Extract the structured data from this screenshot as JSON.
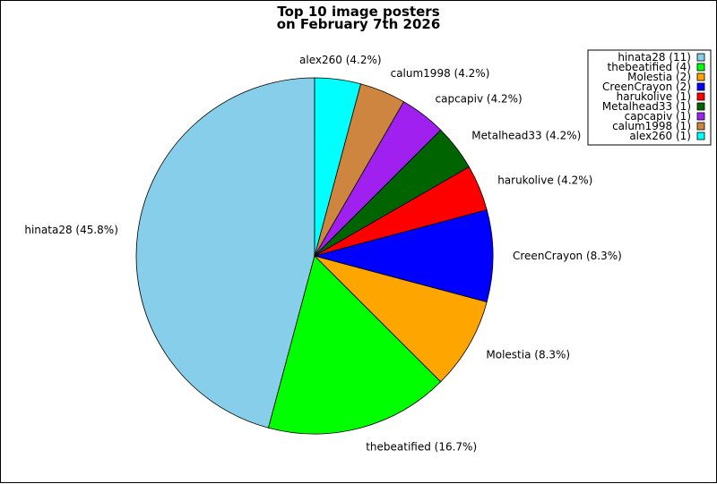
{
  "chart_data": {
    "type": "pie",
    "title_line1": "Top 10 image posters",
    "title_line2": "on February 7th 2026",
    "legend_position": "top-right",
    "slices": [
      {
        "name": "hinata28",
        "value": 11,
        "percent": "45.8%",
        "color": "#87CEEB",
        "label": "hinata28 (45.8%)",
        "legend": "hinata28 (11)"
      },
      {
        "name": "thebeatified",
        "value": 4,
        "percent": "16.7%",
        "color": "#00FF00",
        "label": "thebeatified (16.7%)",
        "legend": "thebeatified (4)"
      },
      {
        "name": "Molestia",
        "value": 2,
        "percent": "8.3%",
        "color": "#FFA500",
        "label": "Molestia (8.3%)",
        "legend": "Molestia (2)"
      },
      {
        "name": "CreenCrayon",
        "value": 2,
        "percent": "8.3%",
        "color": "#0000FF",
        "label": "CreenCrayon (8.3%)",
        "legend": "CreenCrayon (2)"
      },
      {
        "name": "harukolive",
        "value": 1,
        "percent": "4.2%",
        "color": "#FF0000",
        "label": "harukolive (4.2%)",
        "legend": "harukolive (1)"
      },
      {
        "name": "Metalhead33",
        "value": 1,
        "percent": "4.2%",
        "color": "#006400",
        "label": "Metalhead33 (4.2%)",
        "legend": "Metalhead33 (1)"
      },
      {
        "name": "capcapiv",
        "value": 1,
        "percent": "4.2%",
        "color": "#A020F0",
        "label": "capcapiv (4.2%)",
        "legend": "capcapiv (1)"
      },
      {
        "name": "calum1998",
        "value": 1,
        "percent": "4.2%",
        "color": "#CD853F",
        "label": "calum1998 (4.2%)",
        "legend": "calum1998 (1)"
      },
      {
        "name": "alex260",
        "value": 1,
        "percent": "4.2%",
        "color": "#00FFFF",
        "label": "alex260 (4.2%)",
        "legend": "alex260 (1)"
      }
    ]
  }
}
